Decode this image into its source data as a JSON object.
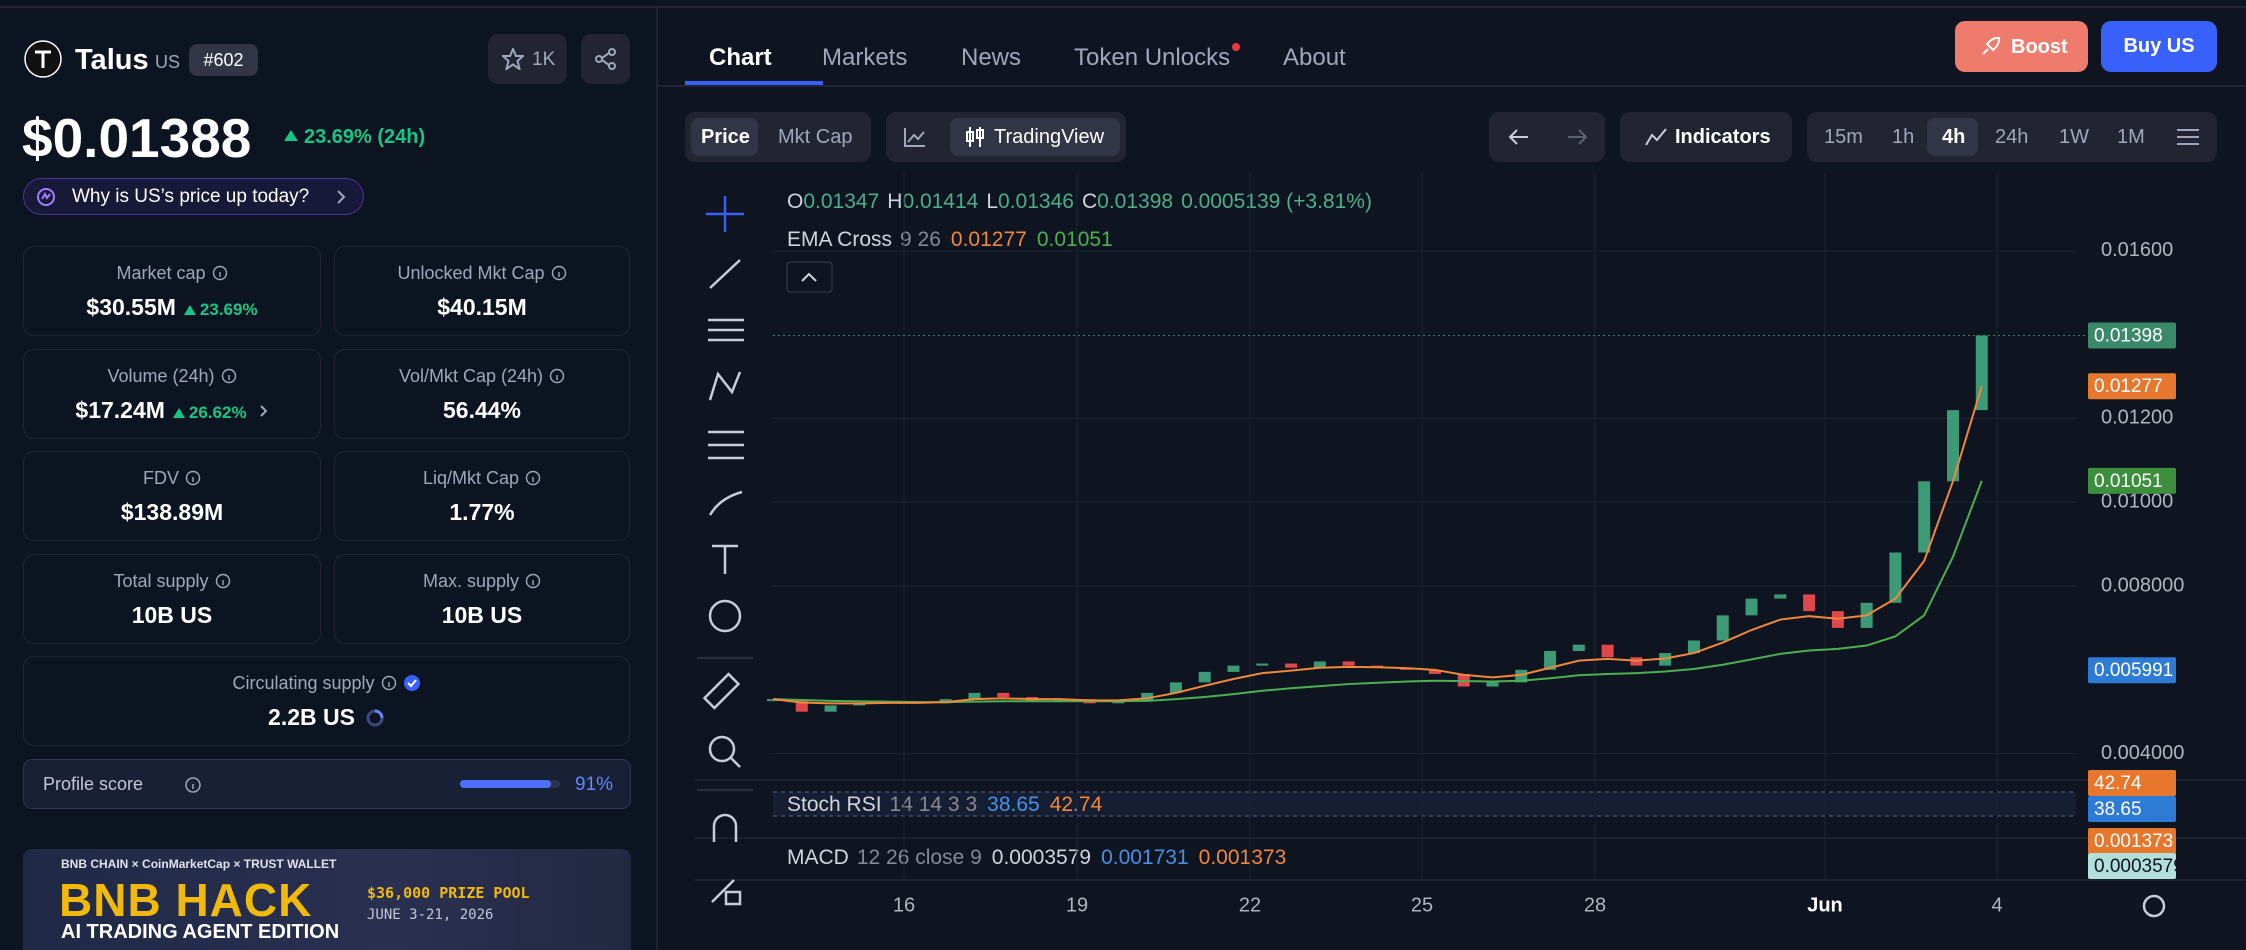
{
  "header": {
    "name": "Talus",
    "symbol": "US",
    "rank": "#602",
    "watchlist": "1K"
  },
  "price": {
    "value": "$0.01388",
    "change": "23.69% (24h)",
    "why": "Why is US’s price up today?"
  },
  "stats": [
    {
      "label": "Market cap",
      "value": "$30.55M",
      "change": "23.69%"
    },
    {
      "label": "Unlocked Mkt Cap",
      "value": "$40.15M"
    },
    {
      "label": "Volume (24h)",
      "value": "$17.24M",
      "change": "26.62%"
    },
    {
      "label": "Vol/Mkt Cap (24h)",
      "value": "56.44%"
    },
    {
      "label": "FDV",
      "value": "$138.89M"
    },
    {
      "label": "Liq/Mkt Cap",
      "value": "1.77%"
    },
    {
      "label": "Total supply",
      "value": "10B US"
    },
    {
      "label": "Max. supply",
      "value": "10B US"
    },
    {
      "label": "Circulating supply",
      "value": "2.2B US"
    }
  ],
  "profile": {
    "label": "Profile score",
    "value": 91,
    "value_label": "91%"
  },
  "banner": {
    "partners": [
      "BNB CHAIN",
      "CoinMarketCap",
      "TRUST WALLET"
    ],
    "title": "BNB HACK",
    "subtitle": "AI TRADING AGENT EDITION",
    "prize": "$36,000 PRIZE POOL",
    "dates": "JUNE 3-21, 2026"
  },
  "tabs": [
    "Chart",
    "Markets",
    "News",
    "Token Unlocks",
    "About"
  ],
  "actions": {
    "boost": "Boost",
    "buy": "Buy US"
  },
  "toolbar": {
    "metric": [
      "Price",
      "Mkt Cap"
    ],
    "view": "TradingView",
    "indicators": "Indicators",
    "timeframes": [
      "15m",
      "1h",
      "4h",
      "24h",
      "1W",
      "1M"
    ]
  },
  "chart": {
    "type": "candlestick",
    "ohlc": {
      "labels": [
        "O",
        "H",
        "L",
        "C"
      ],
      "values": [
        0.01347,
        0.01414,
        0.01346,
        0.01398
      ],
      "change": "0.0005139 (+3.81%)"
    },
    "ema": {
      "name": "EMA Cross",
      "params": "9 26",
      "fast": 0.01277,
      "slow": 0.01051
    },
    "level": 0.005991,
    "closes": [
      0.0053,
      0.005,
      0.00515,
      0.0052,
      0.00525,
      0.0052,
      0.0053,
      0.00545,
      0.00535,
      0.00525,
      0.0053,
      0.0052,
      0.00525,
      0.00545,
      0.0057,
      0.00595,
      0.0061,
      0.00615,
      0.00605,
      0.0062,
      0.0061,
      0.00605,
      0.006,
      0.0059,
      0.0056,
      0.0057,
      0.006,
      0.00645,
      0.0066,
      0.0063,
      0.0061,
      0.0064,
      0.0067,
      0.0073,
      0.0077,
      0.0078,
      0.0074,
      0.007,
      0.0076,
      0.0088,
      0.0105,
      0.0122,
      0.01398
    ],
    "ema_fast": [
      0.0053,
      0.00522,
      0.0052,
      0.0052,
      0.00521,
      0.00521,
      0.00523,
      0.0053,
      0.00532,
      0.0053,
      0.0053,
      0.00527,
      0.00527,
      0.00532,
      0.00545,
      0.00562,
      0.00578,
      0.00592,
      0.00598,
      0.00605,
      0.00607,
      0.00606,
      0.00604,
      0.006,
      0.00588,
      0.00582,
      0.00588,
      0.00605,
      0.00622,
      0.00626,
      0.00622,
      0.00627,
      0.0064,
      0.00665,
      0.00695,
      0.0072,
      0.00728,
      0.00722,
      0.0073,
      0.0077,
      0.0086,
      0.0105,
      0.01277
    ],
    "ema_slow": [
      0.0053,
      0.00528,
      0.00526,
      0.00525,
      0.00524,
      0.00523,
      0.00523,
      0.00524,
      0.00525,
      0.00525,
      0.00525,
      0.00525,
      0.00525,
      0.00526,
      0.0053,
      0.00535,
      0.00542,
      0.0055,
      0.00556,
      0.00561,
      0.00566,
      0.00569,
      0.00572,
      0.00574,
      0.00573,
      0.00572,
      0.00574,
      0.0058,
      0.00587,
      0.0059,
      0.00592,
      0.00596,
      0.00602,
      0.00612,
      0.00625,
      0.00638,
      0.00646,
      0.0065,
      0.00658,
      0.0068,
      0.0073,
      0.0087,
      0.01051
    ],
    "ylim": [
      0.00337,
      0.01762
    ],
    "yticks": [
      {
        "value": 0.016,
        "label": "0.01600"
      },
      {
        "value": 0.012,
        "label": "0.01200"
      },
      {
        "value": 0.01,
        "label": "0.01000"
      },
      {
        "value": 0.008,
        "label": "0.008000"
      },
      {
        "value": 0.004,
        "label": "0.004000"
      }
    ],
    "xticks": [
      "16",
      "19",
      "22",
      "25",
      "28",
      "Jun",
      "4"
    ],
    "stoch": {
      "name": "Stoch RSI",
      "params": "14 14 3 3",
      "k": 38.65,
      "d": 42.74
    },
    "macd": {
      "name": "MACD",
      "params": "12 26 close 9",
      "hist": 0.0003579,
      "macd": 0.001731,
      "signal": 0.001373
    },
    "colors": {
      "up": "#3d9a77",
      "down": "#e0474c",
      "fast": "#f0873a",
      "slow": "#4caf50"
    }
  }
}
